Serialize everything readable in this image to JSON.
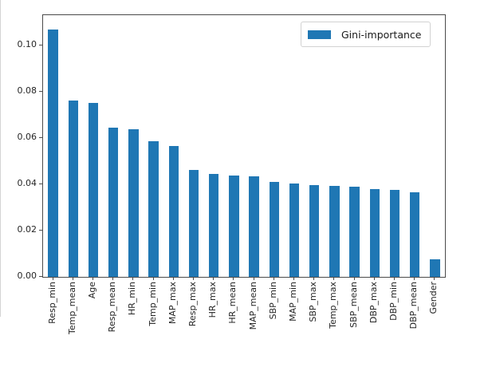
{
  "chart_data": {
    "type": "bar",
    "title": "",
    "xlabel": "",
    "ylabel": "",
    "categories": [
      "Resp_min",
      "Temp_mean",
      "Age",
      "Resp_mean",
      "HR_min",
      "Temp_min",
      "MAP_max",
      "Resp_max",
      "HR_max",
      "HR_mean",
      "MAP_mean",
      "SBP_min",
      "MAP_min",
      "SBP_max",
      "Temp_max",
      "SBP_mean",
      "DBP_max",
      "DBP_min",
      "DBP_mean",
      "Gender"
    ],
    "values": [
      0.107,
      0.0762,
      0.0752,
      0.0644,
      0.0638,
      0.0586,
      0.0566,
      0.0463,
      0.0445,
      0.0438,
      0.0433,
      0.0409,
      0.0403,
      0.0395,
      0.0394,
      0.0391,
      0.0378,
      0.0377,
      0.0365,
      0.0076
    ],
    "legend": {
      "label": "Gini-importance",
      "position": "upper right"
    },
    "bar_color": "#1f77b4",
    "yticks": [
      0,
      0.02,
      0.04,
      0.06,
      0.08,
      0.1
    ],
    "ytick_labels": [
      "0.00",
      "0.02",
      "0.04",
      "0.06",
      "0.08",
      "0.10"
    ],
    "ylim": [
      0,
      0.1131
    ],
    "xtick_rotation": 90,
    "grid": false
  }
}
